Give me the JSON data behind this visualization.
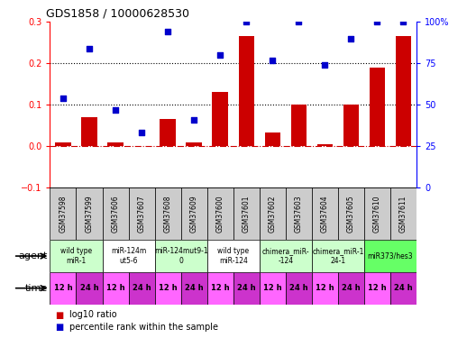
{
  "title": "GDS1858 / 10000628530",
  "samples": [
    "GSM37598",
    "GSM37599",
    "GSM37606",
    "GSM37607",
    "GSM37608",
    "GSM37609",
    "GSM37600",
    "GSM37601",
    "GSM37602",
    "GSM37603",
    "GSM37604",
    "GSM37605",
    "GSM37610",
    "GSM37611"
  ],
  "log10_ratio": [
    0.01,
    0.07,
    0.01,
    0.0,
    0.065,
    0.01,
    0.13,
    0.265,
    0.033,
    0.1,
    0.005,
    0.1,
    0.19,
    0.265
  ],
  "percentile_rank": [
    54,
    84,
    47,
    33,
    94,
    41,
    80,
    100,
    77,
    100,
    74,
    90,
    100,
    100
  ],
  "ylim_left": [
    -0.1,
    0.3
  ],
  "ylim_right": [
    0,
    100
  ],
  "yticks_left": [
    -0.1,
    0.0,
    0.1,
    0.2,
    0.3
  ],
  "yticks_right": [
    0,
    25,
    50,
    75,
    100
  ],
  "hlines": [
    0.1,
    0.2
  ],
  "zero_line_color": "#cc0000",
  "bar_color": "#cc0000",
  "scatter_color": "#0000cc",
  "agent_groups": [
    {
      "label": "wild type\nmiR-1",
      "cols": [
        0,
        1
      ],
      "bg": "#ccffcc"
    },
    {
      "label": "miR-124m\nut5-6",
      "cols": [
        2,
        3
      ],
      "bg": "#ffffff"
    },
    {
      "label": "miR-124mut9-1\n0",
      "cols": [
        4,
        5
      ],
      "bg": "#ccffcc"
    },
    {
      "label": "wild type\nmiR-124",
      "cols": [
        6,
        7
      ],
      "bg": "#ffffff"
    },
    {
      "label": "chimera_miR-\n-124",
      "cols": [
        8,
        9
      ],
      "bg": "#ccffcc"
    },
    {
      "label": "chimera_miR-1\n24-1",
      "cols": [
        10,
        11
      ],
      "bg": "#ccffcc"
    },
    {
      "label": "miR373/hes3",
      "cols": [
        12,
        13
      ],
      "bg": "#66ff66"
    }
  ],
  "time_labels": [
    "12 h",
    "24 h",
    "12 h",
    "24 h",
    "12 h",
    "24 h",
    "12 h",
    "24 h",
    "12 h",
    "24 h",
    "12 h",
    "24 h",
    "12 h",
    "24 h"
  ],
  "time_bg_12": "#ff66ff",
  "time_bg_24": "#cc33cc",
  "header_bg": "#cccccc",
  "agent_row_label": "agent",
  "time_row_label": "time",
  "legend_items": [
    {
      "color": "#cc0000",
      "label": "log10 ratio"
    },
    {
      "color": "#0000cc",
      "label": "percentile rank within the sample"
    }
  ]
}
